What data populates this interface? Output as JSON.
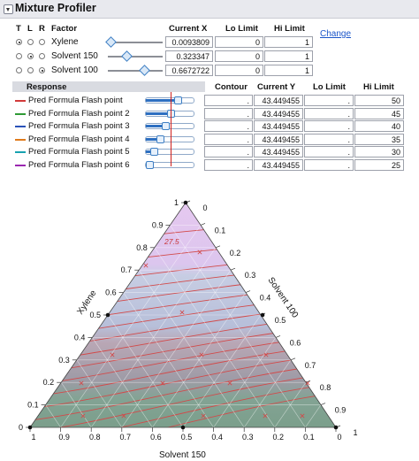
{
  "profiler": {
    "title": "Mixture Profiler",
    "change_link": "Change",
    "factor_headers": {
      "t": "T",
      "l": "L",
      "r": "R",
      "factor": "Factor",
      "current_x": "Current X",
      "lo_limit": "Lo Limit",
      "hi_limit": "Hi Limit"
    },
    "factors": [
      {
        "name": "Xylene",
        "current_x": "0.0093809",
        "lo": "0",
        "hi": "1",
        "radios": [
          "on",
          "off",
          "off"
        ],
        "level": 0.0093809
      },
      {
        "name": "Solvent 150",
        "current_x": "0.323347",
        "lo": "0",
        "hi": "1",
        "radios": [
          "off",
          "on",
          "off"
        ],
        "level": 0.323347
      },
      {
        "name": "Solvent 100",
        "current_x": "0.6672722",
        "lo": "0",
        "hi": "1",
        "radios": [
          "off",
          "off",
          "on"
        ],
        "level": 0.6672722
      }
    ],
    "response_headers": {
      "response": "Response",
      "contour": "Contour",
      "current_y": "Current Y",
      "lo_limit": "Lo Limit",
      "hi_limit": "Hi Limit"
    },
    "responses": [
      {
        "name": "Pred Formula Flash point",
        "color": "#d23a3a",
        "contour": ".",
        "current_y": "43.449455",
        "lo": ".",
        "hi": "50",
        "level": 0.72
      },
      {
        "name": "Pred Formula Flash point 2",
        "color": "#2f9a35",
        "contour": ".",
        "current_y": "43.449455",
        "lo": ".",
        "hi": "45",
        "level": 0.55
      },
      {
        "name": "Pred Formula Flash point 3",
        "color": "#2a52b8",
        "contour": ".",
        "current_y": "43.449455",
        "lo": ".",
        "hi": "40",
        "level": 0.42
      },
      {
        "name": "Pred Formula Flash point 4",
        "color": "#e07b1c",
        "contour": ".",
        "current_y": "43.449455",
        "lo": ".",
        "hi": "35",
        "level": 0.3
      },
      {
        "name": "Pred Formula Flash point 5",
        "color": "#17a2b0",
        "contour": ".",
        "current_y": "43.449455",
        "lo": ".",
        "hi": "30",
        "level": 0.15
      },
      {
        "name": "Pred Formula Flash point 6",
        "color": "#9b27b0",
        "contour": ".",
        "current_y": "43.449455",
        "lo": ".",
        "hi": "25",
        "level": 0.05
      }
    ]
  },
  "ternary": {
    "axis_labels": {
      "left": "Xylene",
      "right": "Solvent 100",
      "bottom": "Solvent 150"
    },
    "left_ticks": [
      "1",
      "0.9",
      "0.8",
      "0.7",
      "0.6",
      "0.5",
      "0.4",
      "0.3",
      "0.2",
      "0.1",
      "0"
    ],
    "right_ticks": [
      "0",
      "0.1",
      "0.2",
      "0.3",
      "0.4",
      "0.5",
      "0.6",
      "0.7",
      "0.8",
      "0.9",
      "1"
    ],
    "bottom_ticks": [
      "1",
      "0.9",
      "0.8",
      "0.7",
      "0.6",
      "0.5",
      "0.4",
      "0.3",
      "0.2",
      "0.1",
      "0"
    ],
    "contour_label": "27.5"
  }
}
